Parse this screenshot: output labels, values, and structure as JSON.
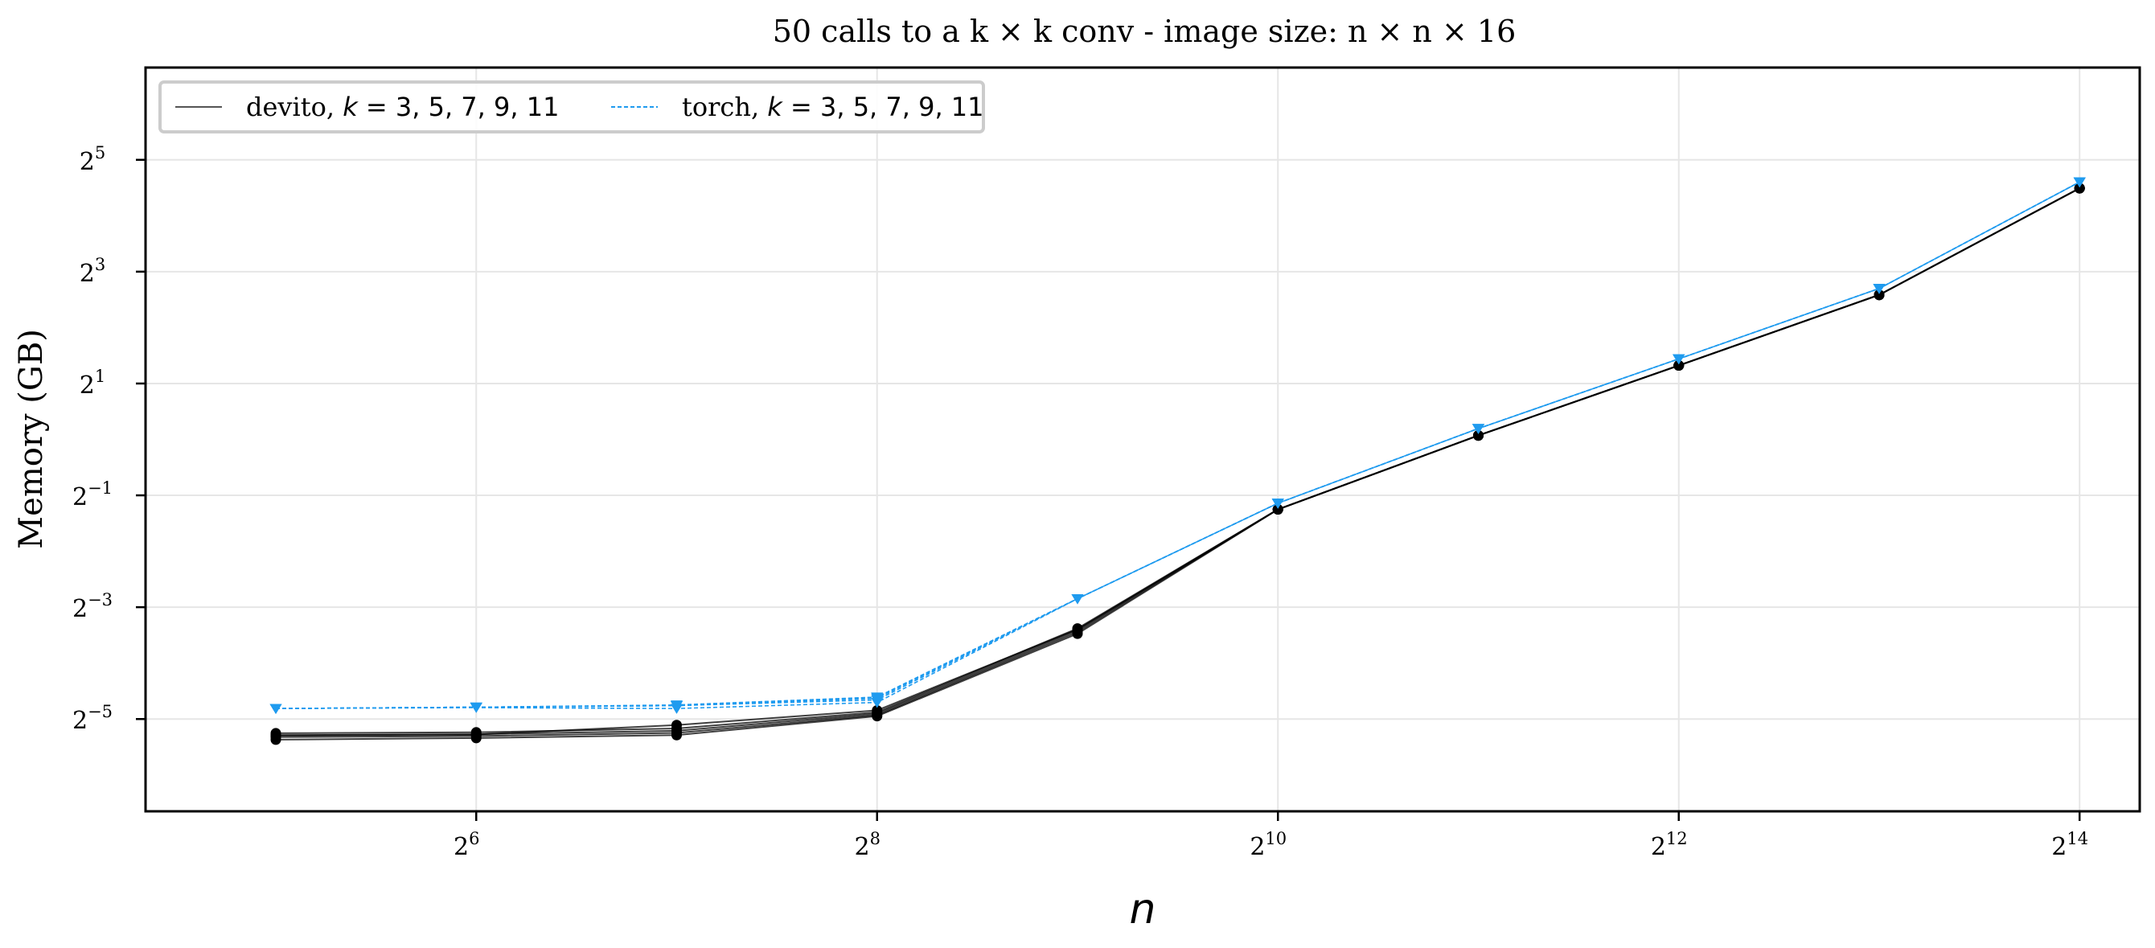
{
  "chart_data": {
    "type": "line",
    "title": "50 calls to a k × k conv - image size: n × n × 16",
    "xlabel": "n",
    "ylabel": "Memory (GB)",
    "xscale": "log2",
    "yscale": "log2",
    "xlim_log2": [
      4.35,
      14.3
    ],
    "ylim_log2": [
      -6.65,
      6.65
    ],
    "grid": true,
    "legend_position": "top-left",
    "x": [
      32,
      64,
      128,
      256,
      512,
      1024,
      2048,
      4096,
      8192,
      16384
    ],
    "x_ticks": [
      {
        "value": 64,
        "base": "2",
        "exp": "6"
      },
      {
        "value": 256,
        "base": "2",
        "exp": "8"
      },
      {
        "value": 1024,
        "base": "2",
        "exp": "10"
      },
      {
        "value": 4096,
        "base": "2",
        "exp": "12"
      },
      {
        "value": 16384,
        "base": "2",
        "exp": "14"
      }
    ],
    "y_ticks": [
      {
        "value": 0.03125,
        "base": "2",
        "exp": "−5"
      },
      {
        "value": 0.125,
        "base": "2",
        "exp": "−3"
      },
      {
        "value": 0.5,
        "base": "2",
        "exp": "−1"
      },
      {
        "value": 2,
        "base": "2",
        "exp": "1"
      },
      {
        "value": 8,
        "base": "2",
        "exp": "3"
      },
      {
        "value": 32,
        "base": "2",
        "exp": "5"
      }
    ],
    "series": [
      {
        "group": "devito",
        "color": "#000000",
        "dash": "solid",
        "marker": "circle",
        "values": [
          0.0242,
          0.0247,
          0.0256,
          0.0324,
          0.09,
          0.42,
          1.05,
          2.5,
          6.0,
          22.5
        ]
      },
      {
        "group": "devito",
        "color": "#000000",
        "dash": "solid",
        "marker": "circle",
        "values": [
          0.025,
          0.0253,
          0.0263,
          0.0328,
          0.092,
          0.42,
          1.05,
          2.5,
          6.0,
          22.5
        ]
      },
      {
        "group": "devito",
        "color": "#000000",
        "dash": "solid",
        "marker": "circle",
        "values": [
          0.0256,
          0.0259,
          0.027,
          0.0334,
          0.094,
          0.42,
          1.05,
          2.5,
          6.0,
          22.5
        ]
      },
      {
        "group": "devito",
        "color": "#000000",
        "dash": "solid",
        "marker": "circle",
        "values": [
          0.0262,
          0.0265,
          0.0278,
          0.034,
          0.096,
          0.42,
          1.05,
          2.5,
          6.0,
          22.5
        ]
      },
      {
        "group": "devito",
        "color": "#000000",
        "dash": "solid",
        "marker": "circle",
        "values": [
          0.0255,
          0.0258,
          0.029,
          0.0348,
          0.095,
          0.42,
          1.05,
          2.5,
          6.0,
          22.5
        ]
      },
      {
        "group": "torch",
        "color": "#1f9bef",
        "dash": "dashed",
        "marker": "triangle-down",
        "values": [
          0.0356,
          0.0362,
          0.0369,
          0.041,
          0.1389,
          0.4535,
          1.1442,
          2.7132,
          6.4932,
          24.3
        ]
      },
      {
        "group": "torch",
        "color": "#1f9bef",
        "dash": "dashed",
        "marker": "triangle-down",
        "values": [
          0.0356,
          0.0362,
          0.0369,
          0.0396,
          0.1389,
          0.4535,
          1.1442,
          2.7132,
          6.4932,
          24.3
        ]
      },
      {
        "group": "torch",
        "color": "#1f9bef",
        "dash": "dashed",
        "marker": "triangle-down",
        "values": [
          0.0356,
          0.036,
          0.0356,
          0.0384,
          0.1389,
          0.4535,
          1.1442,
          2.7132,
          6.4932,
          24.3
        ]
      },
      {
        "group": "torch",
        "color": "#1f9bef",
        "dash": "dashed",
        "marker": "triangle-down",
        "values": [
          0.0356,
          0.0362,
          0.0372,
          0.041,
          0.1389,
          0.4535,
          1.1442,
          2.7132,
          6.4932,
          24.3
        ]
      },
      {
        "group": "torch",
        "color": "#1f9bef",
        "dash": "dashed",
        "marker": "triangle-down",
        "values": [
          0.0356,
          0.0362,
          0.0369,
          0.0404,
          0.1389,
          0.4535,
          1.1442,
          2.7132,
          6.4932,
          24.3
        ]
      }
    ],
    "legend": [
      {
        "name": "devito",
        "k_label": "k",
        "k_values": " = 3, 5, 7, 9, 11",
        "color": "#555555",
        "dash": "solid"
      },
      {
        "name": "torch",
        "k_label": "k",
        "k_values": " = 3, 5, 7, 9, 11",
        "color": "#1f9bef",
        "dash": "dashed"
      }
    ]
  }
}
